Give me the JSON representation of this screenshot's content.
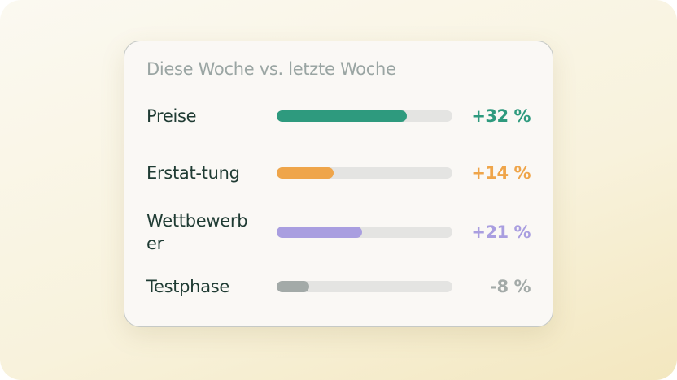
{
  "card": {
    "title": "Diese Woche vs. letzte Woche",
    "rows": [
      {
        "label": "Preise",
        "value": 32,
        "value_label": "+32 %",
        "color": "#2e9a7e"
      },
      {
        "label": "Erstat-tung",
        "value": 14,
        "value_label": "+14 %",
        "color": "#efa54a"
      },
      {
        "label": "Wettbewerber",
        "value": 21,
        "value_label": "+21 %",
        "color": "#a99ee0"
      },
      {
        "label": "Testphase",
        "value": -8,
        "value_label": "-8 %",
        "color": "#a3aaa8"
      }
    ]
  }
}
